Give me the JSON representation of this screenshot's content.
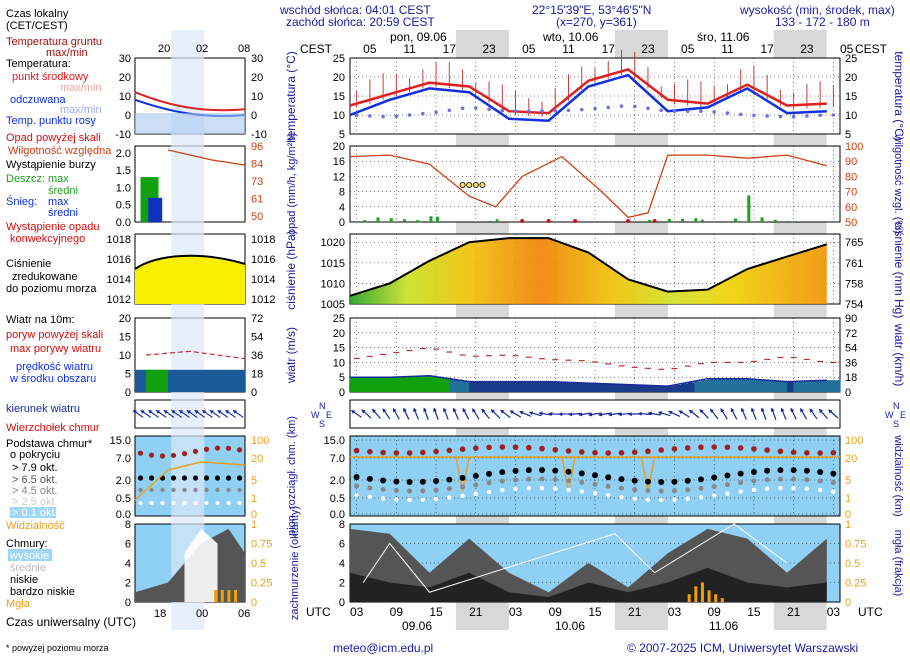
{
  "header": {
    "sunrise": "wschód słońca: 04:01 CEST",
    "sunset": "zachód słońca: 20:59 CEST",
    "coords": "22°15'39\"E, 53°46'5\"N",
    "grid": "(x=270, y=361)",
    "elev_label": "wysokość (min, środek, max)",
    "elev_values": "133 - 172 - 180 m"
  },
  "timeline": {
    "top_zone": "CEST",
    "bottom_zone": "UTC",
    "days_top": [
      "pon, 09.06",
      "wto, 10.06",
      "śro, 11.06"
    ],
    "days_bottom": [
      "09.06",
      "10.06",
      "11.06"
    ],
    "hours_cest": [
      "05",
      "11",
      "17",
      "23",
      "05",
      "11",
      "17",
      "23",
      "05",
      "11",
      "17",
      "23",
      "05"
    ],
    "hours_utc": [
      "03",
      "09",
      "15",
      "21",
      "03",
      "09",
      "15",
      "21",
      "03",
      "09",
      "15",
      "21",
      "03"
    ],
    "legend_top": [
      "20",
      "02",
      "08"
    ],
    "legend_bottom": [
      "18",
      "00",
      "06"
    ]
  },
  "legend": {
    "local_time": "Czas lokalny",
    "local_time2": "(CET/CEST)",
    "ground_temp": "Temperatura gruntu",
    "ground_temp2": "max/min",
    "temperature": "Temperatura:",
    "mid_point": "punkt środkowy",
    "max_min": "max/min",
    "felt": "odczuwana",
    "felt_maxmin": "max/min",
    "dew_point": "Temp. punktu rosy",
    "precip_above": "Opad powyżej skali",
    "humidity": "Wilgotność względna",
    "storm": "Wystąpienie burzy",
    "rain": "Deszcz:",
    "max": "max",
    "mid": "średni",
    "snow": "Śnieg:",
    "conv1": "Wystąpienie opadu",
    "conv2": "konwekcyjnego",
    "pressure1": "Ciśnienie",
    "pressure2": "zredukowane",
    "pressure3": "do poziomu morza",
    "wind10": "Wiatr na 10m:",
    "gust_above": "poryw powyżej skali",
    "gust_max": "max porywy wiatru",
    "wind_speed1": "prędkość wiatru",
    "wind_speed2": "w środku obszaru",
    "wind_dir": "kierunek wiatru",
    "cloud_top": "Wierzchołek chmur",
    "cloud_base1": "Podstawa chmur*",
    "cloud_base2": "o pokryciu",
    "okt1": "> 7.9 okt.",
    "okt2": "> 6.5 okt.",
    "okt3": "> 4.5 okt.",
    "okt4": "> 2.5 okt.",
    "okt5": "> 0.1 okt.",
    "visibility": "Widzialność",
    "clouds": "Chmury:",
    "high": "wysokie",
    "medium": "średnie",
    "low": "niskie",
    "very_low": "bardzo niskie",
    "fog": "Mgła",
    "utc_label": "Czas uniwersalny (UTC)",
    "footnote": "* powyżej poziomu morza"
  },
  "axis_titles": {
    "temp_l": "temperatura (°C)",
    "temp_r": "temperatura (°C)",
    "prec_l": "opad (mm/h, kg/m²h)",
    "prec_r": "wilgotność wzgl. (%)",
    "pres_l": "ciśnienie (hPa)",
    "pres_r": "ciśnienie (mm Hg)",
    "wind_l": "wiatr (m/s)",
    "wind_r": "wiatr (km/h)",
    "cloud_l": "pion. rozciągł. chm. (km)",
    "cloud_r": "widzialność (km)",
    "cov_l": "zachmurzenie (oktanty)",
    "cov_r": "mgła (frakcja)",
    "dir_letters": [
      "N",
      "W",
      "E",
      "S"
    ]
  },
  "footer": {
    "email": "meteo@icm.edu.pl",
    "copyright": "© 2007-2025 ICM, Uniwersytet Warszawski"
  },
  "colors": {
    "temp": "#e02020",
    "felt": "#1030e0",
    "dew": "#7070e0",
    "ground": "#a01010",
    "humidity": "#d04010",
    "rain": "#20a020",
    "pressure_line": "#000000",
    "gust": "#c03030",
    "wind_dir": "#1a2a9a",
    "visibility": "#e8a020",
    "sky": "#8fd0f4",
    "night": "#d8d8d8"
  },
  "chart_data": [
    {
      "type": "line",
      "panel": "temperature",
      "x_unit": "hours since first column (09.06 02 UTC)",
      "ylim": [
        5,
        25
      ],
      "yticks": [
        5,
        10,
        15,
        20,
        25
      ],
      "series": [
        {
          "name": "punkt środkowy",
          "x": [
            0,
            6,
            12,
            18,
            24,
            30,
            36,
            42,
            48,
            54,
            60,
            66,
            72
          ],
          "values": [
            12.5,
            15.5,
            18.5,
            17.5,
            11,
            10.5,
            19,
            22,
            14,
            13,
            18,
            12.5,
            13
          ]
        },
        {
          "name": "odczuwana",
          "x": [
            0,
            6,
            12,
            18,
            24,
            30,
            36,
            42,
            48,
            54,
            60,
            66,
            72
          ],
          "values": [
            10,
            14,
            17,
            16,
            9,
            8.5,
            17.5,
            20.5,
            11,
            12,
            17,
            10.5,
            11
          ]
        },
        {
          "name": "Temp. punktu rosy",
          "x": [
            0,
            6,
            12,
            18,
            24,
            30,
            36,
            42,
            48,
            54,
            60,
            66,
            72
          ],
          "values": [
            10,
            9.5,
            10.5,
            12,
            11,
            11,
            11.5,
            12.5,
            11,
            11,
            10,
            9.5,
            10
          ]
        }
      ]
    },
    {
      "type": "bar",
      "panel": "precipitation",
      "ylim": [
        0,
        20
      ],
      "yticks": [
        0,
        4,
        8,
        12,
        16,
        20
      ],
      "y2lim": [
        50,
        100
      ],
      "y2ticks": [
        50,
        60,
        70,
        80,
        90,
        100
      ],
      "series": [
        {
          "name": "Deszcz",
          "x": [
            2,
            4,
            6,
            8,
            10,
            12,
            13,
            21,
            22,
            45,
            48,
            50,
            52,
            53,
            58,
            60,
            62,
            64,
            66
          ],
          "values": [
            0.5,
            1.2,
            1,
            0.7,
            0.5,
            1.5,
            1.4,
            0.3,
            0.7,
            0.5,
            0.8,
            0.8,
            1,
            0.6,
            0.9,
            7,
            1.2,
            0.6,
            0.3
          ]
        },
        {
          "name": "Wilgotność względna",
          "x": [
            0,
            6,
            12,
            18,
            22,
            26,
            32,
            38,
            42,
            45,
            48,
            54,
            60,
            66,
            72
          ],
          "values": [
            93,
            94,
            88,
            67,
            60,
            80,
            93,
            70,
            53,
            56,
            94,
            94,
            92,
            94,
            87
          ]
        }
      ],
      "storm_x": [
        17,
        18,
        19,
        20
      ]
    },
    {
      "type": "area",
      "panel": "pressure",
      "ylim": [
        1005,
        1022
      ],
      "yticks": [
        1005,
        1010,
        1015,
        1020
      ],
      "y2ticks": [
        754,
        758,
        761,
        765
      ],
      "series": [
        {
          "name": "Ciśnienie",
          "x": [
            0,
            6,
            12,
            18,
            24,
            30,
            36,
            42,
            48,
            54,
            60,
            66,
            72
          ],
          "values": [
            1007,
            1010,
            1015.5,
            1020,
            1021,
            1021,
            1017.5,
            1011,
            1008,
            1008.5,
            1013.5,
            1016.5,
            1019.5
          ]
        }
      ]
    },
    {
      "type": "line",
      "panel": "wind",
      "ylim": [
        0,
        25
      ],
      "yticks": [
        0,
        5,
        10,
        15,
        20,
        25
      ],
      "y2ticks": [
        0,
        18,
        36,
        54,
        72,
        90
      ],
      "series": [
        {
          "name": "max porywy wiatru",
          "x": [
            0,
            6,
            12,
            18,
            24,
            30,
            36,
            42,
            48,
            54,
            60,
            66,
            72
          ],
          "values": [
            11,
            13,
            15,
            12,
            12.5,
            11,
            10.5,
            8.5,
            7.5,
            10,
            10,
            12,
            10
          ]
        },
        {
          "name": "prędkość wiatru",
          "x": [
            0,
            6,
            12,
            18,
            24,
            30,
            36,
            42,
            48,
            54,
            60,
            66,
            72
          ],
          "values": [
            5,
            5,
            5.5,
            3.5,
            3.5,
            3.5,
            3,
            2.5,
            2,
            4.5,
            4.5,
            3.5,
            4
          ]
        }
      ]
    },
    {
      "type": "scatter",
      "panel": "clouds",
      "ylim": [
        0,
        15
      ],
      "yticks": [
        0,
        0.5,
        2.0,
        7.0,
        15.0
      ],
      "y2ticks": [
        0,
        1,
        5,
        20,
        100
      ],
      "series": [
        {
          "name": "Wierzchołek chmur",
          "x": [
            0,
            6,
            12,
            18,
            24,
            30,
            36,
            42,
            48,
            54,
            60,
            66,
            72
          ],
          "values": [
            8,
            8.5,
            8.5,
            8,
            9,
            9,
            9.5,
            9,
            9,
            8,
            8.5,
            8.5,
            8
          ]
        },
        {
          "name": "Widzialność",
          "x": [
            0,
            6,
            12,
            18,
            24,
            30,
            36,
            42,
            48,
            54,
            60,
            66,
            72
          ],
          "values": [
            20,
            20,
            20,
            20,
            20,
            20,
            20,
            20,
            20,
            20,
            20,
            20,
            20
          ]
        }
      ]
    },
    {
      "type": "area",
      "panel": "cloud-cover",
      "ylim": [
        0,
        8
      ],
      "yticks": [
        0,
        2,
        4,
        6,
        8
      ],
      "y2ticks": [
        0,
        0.25,
        0.5,
        0.75,
        1
      ],
      "series": [
        {
          "name": "niskie",
          "x": [
            0,
            6,
            12,
            18,
            24,
            30,
            36,
            42,
            48,
            54,
            60,
            66,
            72
          ],
          "values": [
            7.5,
            7,
            3,
            6.5,
            3,
            1,
            4,
            1.5,
            5,
            7.5,
            6.5,
            3,
            6.5
          ]
        },
        {
          "name": "bardzo niskie",
          "x": [
            0,
            6,
            12,
            18,
            24,
            30,
            36,
            42,
            48,
            54,
            60,
            66,
            72
          ],
          "values": [
            3,
            2,
            1.5,
            3,
            1,
            0.5,
            2,
            1,
            2,
            3.5,
            2,
            1.5,
            2
          ]
        },
        {
          "name": "Mgła",
          "x": [
            51,
            52,
            53,
            54,
            55,
            56
          ],
          "values": [
            0.1,
            0.2,
            0.25,
            0.15,
            0.1,
            0.05
          ]
        }
      ]
    }
  ]
}
